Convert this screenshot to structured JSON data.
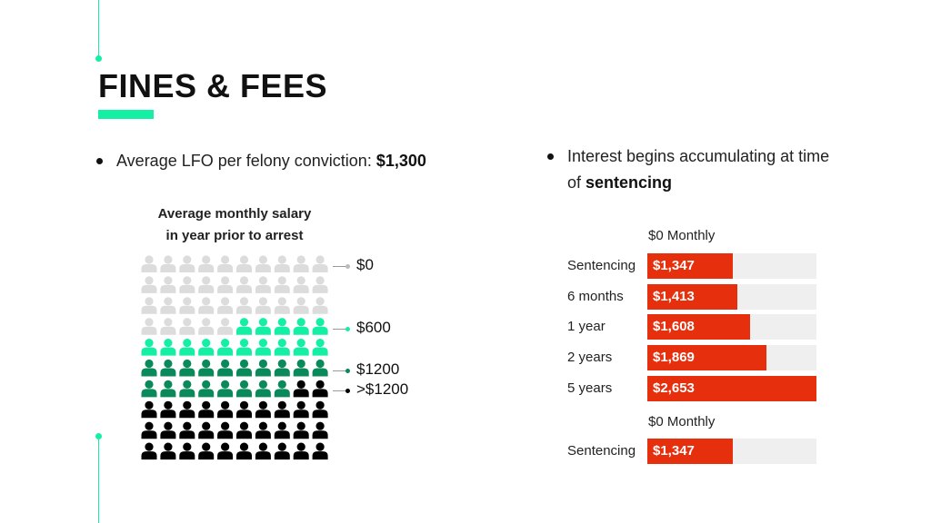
{
  "slide": {
    "title": "FINES & FEES",
    "accent_color": "#14f0a3"
  },
  "bullet_left": {
    "text": "Average LFO per felony conviction: ",
    "value": "$1,300"
  },
  "bullet_right": {
    "text": "Interest begins accumulating at time of ",
    "value": "sentencing"
  },
  "chart_data": [
    {
      "type": "waffle",
      "title_line1": "Average monthly salary",
      "title_line2": "in year prior to arrest",
      "grid": {
        "rows": 10,
        "columns": 10
      },
      "categories": [
        "$0",
        "$600",
        "$1200",
        ">$1200"
      ],
      "counts": [
        35,
        15,
        18,
        32
      ],
      "colors": [
        "#dcdcdc",
        "#14f0a3",
        "#0a8a5a",
        "#000000"
      ],
      "labels": [
        "$0",
        "$600",
        "$1200",
        ">$1200"
      ]
    },
    {
      "type": "bar",
      "orientation": "horizontal",
      "header": "$0 Monthly",
      "categories": [
        "Sentencing",
        "6 months",
        "1 year",
        "2 years",
        "5 years"
      ],
      "values": [
        1347,
        1413,
        1608,
        1869,
        2653
      ],
      "value_labels": [
        "$1,347",
        "$1,413",
        "$1,608",
        "$1,869",
        "$2,653"
      ],
      "xlim": [
        0,
        2653
      ],
      "bar_color": "#e62f0d",
      "track_color": "#efefef"
    },
    {
      "type": "bar",
      "orientation": "horizontal",
      "header": "$0 Monthly",
      "categories": [
        "Sentencing"
      ],
      "values": [
        1347
      ],
      "value_labels": [
        "$1,347"
      ],
      "xlim": [
        0,
        2653
      ],
      "bar_color": "#e62f0d",
      "track_color": "#efefef"
    }
  ]
}
